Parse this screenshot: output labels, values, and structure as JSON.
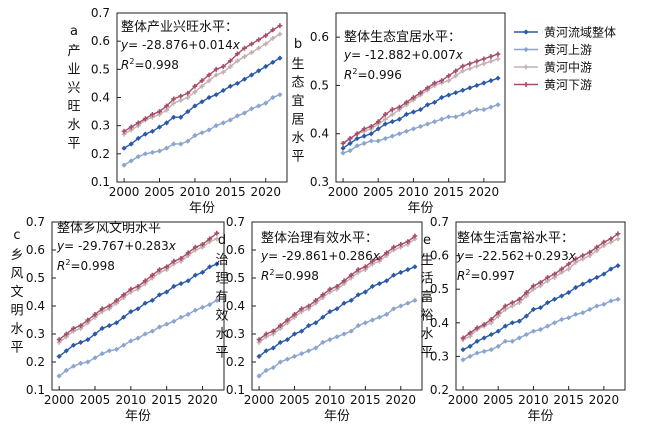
{
  "legend": {
    "position": "top-right",
    "items": [
      {
        "name": "黄河流域整体",
        "color": "#2a5aa8",
        "marker": "diamond"
      },
      {
        "name": "黄河上游",
        "color": "#8ca5cf",
        "marker": "diamond"
      },
      {
        "name": "黄河中游",
        "color": "#c4b0ae",
        "marker": "plus"
      },
      {
        "name": "黄河下游",
        "color": "#a64d6a",
        "marker": "plus"
      }
    ]
  },
  "chart_data": [
    {
      "id": "a",
      "panel_label": "a",
      "type": "line",
      "title": "整体产业兴旺水平：",
      "equation_prefix": "y",
      "equation_rest": "= -28.876+0.014",
      "equation_var": "x",
      "r2_label": "R",
      "r2_value": "=0.998",
      "xlabel": "年份",
      "ylabel": "产业兴旺水平",
      "xlim": [
        1999,
        2023
      ],
      "ylim": [
        0.1,
        0.7
      ],
      "xticks": [
        2000,
        2005,
        2010,
        2015,
        2020
      ],
      "yticks": [
        0.1,
        0.2,
        0.3,
        0.4,
        0.5,
        0.6,
        0.7
      ],
      "x": [
        2000,
        2001,
        2002,
        2003,
        2004,
        2005,
        2006,
        2007,
        2008,
        2009,
        2010,
        2011,
        2012,
        2013,
        2014,
        2015,
        2016,
        2017,
        2018,
        2019,
        2020,
        2021,
        2022
      ],
      "series": [
        {
          "name": "黄河流域整体",
          "values": [
            0.22,
            0.235,
            0.255,
            0.27,
            0.28,
            0.295,
            0.31,
            0.33,
            0.33,
            0.35,
            0.37,
            0.385,
            0.4,
            0.41,
            0.425,
            0.44,
            0.45,
            0.465,
            0.48,
            0.495,
            0.51,
            0.525,
            0.54
          ]
        },
        {
          "name": "黄河上游",
          "values": [
            0.16,
            0.175,
            0.19,
            0.2,
            0.205,
            0.21,
            0.22,
            0.235,
            0.235,
            0.245,
            0.265,
            0.275,
            0.285,
            0.3,
            0.31,
            0.32,
            0.335,
            0.345,
            0.36,
            0.37,
            0.38,
            0.4,
            0.41
          ]
        },
        {
          "name": "黄河中游",
          "values": [
            0.27,
            0.285,
            0.3,
            0.32,
            0.33,
            0.34,
            0.355,
            0.38,
            0.39,
            0.4,
            0.42,
            0.44,
            0.46,
            0.48,
            0.49,
            0.51,
            0.53,
            0.545,
            0.56,
            0.575,
            0.59,
            0.61,
            0.625
          ]
        },
        {
          "name": "黄河下游",
          "values": [
            0.28,
            0.295,
            0.31,
            0.325,
            0.34,
            0.35,
            0.37,
            0.395,
            0.405,
            0.415,
            0.44,
            0.46,
            0.48,
            0.5,
            0.51,
            0.53,
            0.555,
            0.575,
            0.59,
            0.605,
            0.62,
            0.64,
            0.655
          ]
        }
      ]
    },
    {
      "id": "b",
      "panel_label": "b",
      "type": "line",
      "title": "整体生态宜居水平：",
      "equation_prefix": "y",
      "equation_rest": "= -12.882+0.007",
      "equation_var": "x",
      "r2_label": "R",
      "r2_value": "=0.996",
      "xlabel": "年份",
      "ylabel": "生态宜居水平",
      "xlim": [
        1999,
        2023
      ],
      "ylim": [
        0.3,
        0.65
      ],
      "xticks": [
        2000,
        2005,
        2010,
        2015,
        2020
      ],
      "yticks": [
        0.3,
        0.4,
        0.5,
        0.6
      ],
      "x": [
        2000,
        2001,
        2002,
        2003,
        2004,
        2005,
        2006,
        2007,
        2008,
        2009,
        2010,
        2011,
        2012,
        2013,
        2014,
        2015,
        2016,
        2017,
        2018,
        2019,
        2020,
        2021,
        2022
      ],
      "series": [
        {
          "name": "黄河流域整体",
          "values": [
            0.37,
            0.38,
            0.39,
            0.395,
            0.4,
            0.41,
            0.42,
            0.425,
            0.43,
            0.44,
            0.445,
            0.45,
            0.46,
            0.465,
            0.475,
            0.48,
            0.485,
            0.49,
            0.495,
            0.5,
            0.505,
            0.51,
            0.515
          ]
        },
        {
          "name": "黄河上游",
          "values": [
            0.36,
            0.365,
            0.375,
            0.38,
            0.385,
            0.385,
            0.39,
            0.395,
            0.4,
            0.405,
            0.41,
            0.415,
            0.42,
            0.425,
            0.43,
            0.435,
            0.435,
            0.44,
            0.445,
            0.45,
            0.45,
            0.455,
            0.46
          ]
        },
        {
          "name": "黄河中游",
          "values": [
            0.38,
            0.39,
            0.4,
            0.405,
            0.41,
            0.42,
            0.43,
            0.44,
            0.45,
            0.46,
            0.47,
            0.48,
            0.49,
            0.5,
            0.505,
            0.51,
            0.52,
            0.53,
            0.535,
            0.54,
            0.545,
            0.55,
            0.555
          ]
        },
        {
          "name": "黄河下游",
          "values": [
            0.38,
            0.39,
            0.4,
            0.41,
            0.415,
            0.425,
            0.44,
            0.45,
            0.455,
            0.465,
            0.475,
            0.485,
            0.495,
            0.505,
            0.51,
            0.52,
            0.53,
            0.54,
            0.545,
            0.55,
            0.555,
            0.56,
            0.565
          ]
        }
      ]
    },
    {
      "id": "c",
      "panel_label": "c",
      "type": "line",
      "title": "整体乡风文明水平",
      "equation_prefix": "y",
      "equation_rest": "= -29.767+0.283",
      "equation_var": "x",
      "r2_label": "R",
      "r2_value": "=0.998",
      "xlabel": "年份",
      "ylabel": "乡风文明水平",
      "xlim": [
        1999,
        2023
      ],
      "ylim": [
        0.1,
        0.7
      ],
      "xticks": [
        2000,
        2005,
        2010,
        2015,
        2020
      ],
      "yticks": [
        0.1,
        0.2,
        0.3,
        0.4,
        0.5,
        0.6,
        0.7
      ],
      "x": [
        2000,
        2001,
        2002,
        2003,
        2004,
        2005,
        2006,
        2007,
        2008,
        2009,
        2010,
        2011,
        2012,
        2013,
        2014,
        2015,
        2016,
        2017,
        2018,
        2019,
        2020,
        2021,
        2022
      ],
      "series": [
        {
          "name": "黄河流域整体",
          "values": [
            0.22,
            0.24,
            0.26,
            0.27,
            0.28,
            0.3,
            0.32,
            0.33,
            0.34,
            0.36,
            0.38,
            0.39,
            0.41,
            0.42,
            0.44,
            0.45,
            0.47,
            0.48,
            0.49,
            0.51,
            0.52,
            0.54,
            0.55
          ]
        },
        {
          "name": "黄河上游",
          "values": [
            0.15,
            0.17,
            0.185,
            0.195,
            0.2,
            0.215,
            0.23,
            0.24,
            0.245,
            0.26,
            0.275,
            0.285,
            0.3,
            0.31,
            0.325,
            0.335,
            0.345,
            0.36,
            0.37,
            0.385,
            0.395,
            0.405,
            0.42
          ]
        },
        {
          "name": "黄河中游",
          "values": [
            0.27,
            0.29,
            0.31,
            0.32,
            0.34,
            0.36,
            0.38,
            0.39,
            0.41,
            0.43,
            0.45,
            0.46,
            0.48,
            0.5,
            0.52,
            0.53,
            0.55,
            0.56,
            0.58,
            0.6,
            0.61,
            0.63,
            0.64
          ]
        },
        {
          "name": "黄河下游",
          "values": [
            0.28,
            0.3,
            0.32,
            0.33,
            0.35,
            0.37,
            0.39,
            0.4,
            0.42,
            0.44,
            0.46,
            0.47,
            0.49,
            0.51,
            0.53,
            0.54,
            0.56,
            0.57,
            0.59,
            0.61,
            0.62,
            0.64,
            0.66
          ]
        }
      ]
    },
    {
      "id": "d",
      "panel_label": "d",
      "type": "line",
      "title": "整体治理有效水平：",
      "equation_prefix": "y",
      "equation_rest": "= -29.861+0.286",
      "equation_var": "x",
      "r2_label": "R",
      "r2_value": "=0.998",
      "xlabel": "年份",
      "ylabel": "治理有效水平",
      "xlim": [
        1999,
        2023
      ],
      "ylim": [
        0.1,
        0.7
      ],
      "xticks": [
        2000,
        2005,
        2010,
        2015,
        2020
      ],
      "yticks": [
        0.1,
        0.2,
        0.3,
        0.4,
        0.5,
        0.6,
        0.7
      ],
      "x": [
        2000,
        2001,
        2002,
        2003,
        2004,
        2005,
        2006,
        2007,
        2008,
        2009,
        2010,
        2011,
        2012,
        2013,
        2014,
        2015,
        2016,
        2017,
        2018,
        2019,
        2020,
        2021,
        2022
      ],
      "series": [
        {
          "name": "黄河流域整体",
          "values": [
            0.22,
            0.24,
            0.25,
            0.27,
            0.28,
            0.3,
            0.31,
            0.33,
            0.34,
            0.36,
            0.38,
            0.39,
            0.41,
            0.42,
            0.44,
            0.45,
            0.47,
            0.48,
            0.49,
            0.51,
            0.52,
            0.53,
            0.54
          ]
        },
        {
          "name": "黄河上游",
          "values": [
            0.15,
            0.17,
            0.18,
            0.2,
            0.21,
            0.22,
            0.23,
            0.24,
            0.25,
            0.27,
            0.28,
            0.29,
            0.3,
            0.31,
            0.33,
            0.34,
            0.35,
            0.36,
            0.37,
            0.39,
            0.4,
            0.41,
            0.42
          ]
        },
        {
          "name": "黄河中游",
          "values": [
            0.27,
            0.29,
            0.3,
            0.32,
            0.34,
            0.36,
            0.38,
            0.39,
            0.41,
            0.43,
            0.45,
            0.46,
            0.48,
            0.5,
            0.52,
            0.53,
            0.55,
            0.56,
            0.58,
            0.6,
            0.61,
            0.62,
            0.64
          ]
        },
        {
          "name": "黄河下游",
          "values": [
            0.28,
            0.3,
            0.31,
            0.33,
            0.35,
            0.37,
            0.39,
            0.4,
            0.42,
            0.44,
            0.46,
            0.47,
            0.49,
            0.51,
            0.53,
            0.54,
            0.56,
            0.57,
            0.59,
            0.61,
            0.62,
            0.63,
            0.65
          ]
        }
      ]
    },
    {
      "id": "e",
      "panel_label": "e",
      "type": "line",
      "title": "整体生活富裕水平：",
      "equation_prefix": "y",
      "equation_rest": "= -22.562+0.293",
      "equation_var": "x",
      "r2_label": "R",
      "r2_value": "=0.997",
      "xlabel": "年份",
      "ylabel": "生活富裕水平",
      "xlim": [
        1999,
        2023
      ],
      "ylim": [
        0.2,
        0.7
      ],
      "xticks": [
        2000,
        2005,
        2010,
        2015,
        2020
      ],
      "yticks": [
        0.2,
        0.3,
        0.4,
        0.5,
        0.6,
        0.7
      ],
      "x": [
        2000,
        2001,
        2002,
        2003,
        2004,
        2005,
        2006,
        2007,
        2008,
        2009,
        2010,
        2011,
        2012,
        2013,
        2014,
        2015,
        2016,
        2017,
        2018,
        2019,
        2020,
        2021,
        2022
      ],
      "series": [
        {
          "name": "黄河流域整体",
          "values": [
            0.32,
            0.33,
            0.345,
            0.355,
            0.365,
            0.375,
            0.39,
            0.4,
            0.405,
            0.42,
            0.44,
            0.445,
            0.46,
            0.47,
            0.48,
            0.49,
            0.505,
            0.515,
            0.525,
            0.535,
            0.545,
            0.56,
            0.57
          ]
        },
        {
          "name": "黄河上游",
          "values": [
            0.29,
            0.3,
            0.31,
            0.315,
            0.32,
            0.33,
            0.345,
            0.345,
            0.355,
            0.365,
            0.375,
            0.38,
            0.39,
            0.4,
            0.41,
            0.415,
            0.425,
            0.43,
            0.44,
            0.45,
            0.455,
            0.465,
            0.47
          ]
        },
        {
          "name": "黄河中游",
          "values": [
            0.35,
            0.36,
            0.38,
            0.39,
            0.4,
            0.42,
            0.44,
            0.45,
            0.46,
            0.48,
            0.5,
            0.51,
            0.525,
            0.535,
            0.55,
            0.56,
            0.58,
            0.59,
            0.6,
            0.615,
            0.63,
            0.64,
            0.65
          ]
        },
        {
          "name": "黄河下游",
          "values": [
            0.355,
            0.37,
            0.385,
            0.395,
            0.41,
            0.43,
            0.45,
            0.46,
            0.47,
            0.49,
            0.51,
            0.52,
            0.535,
            0.545,
            0.56,
            0.575,
            0.59,
            0.6,
            0.61,
            0.625,
            0.64,
            0.65,
            0.665
          ]
        }
      ]
    }
  ]
}
